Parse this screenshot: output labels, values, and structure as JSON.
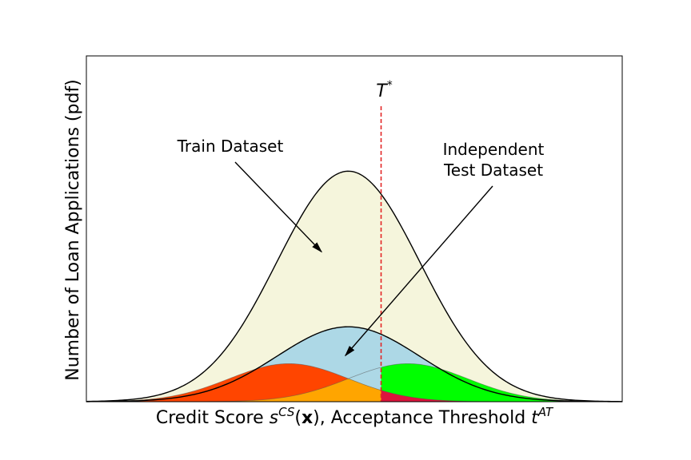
{
  "chart_data": {
    "type": "area",
    "title": "",
    "xlabel": "Credit Score s^CS(x), Acceptance Threshold t^AT",
    "xlabel_parts": {
      "prefix": "Credit Score ",
      "s": "s",
      "s_sup": "CS",
      "open": "(",
      "x": "x",
      "close": "), Acceptance Threshold ",
      "t": "t",
      "t_sup": "AT"
    },
    "ylabel": "Number of Loan Applications (pdf)",
    "xlim": [
      -4.4,
      4.6
    ],
    "ylim": [
      0,
      1.5
    ],
    "grid": false,
    "ticks_visible": false,
    "threshold": {
      "label": "T",
      "label_sup": "*",
      "x": 0.55,
      "color": "#e32626",
      "style": "dashed"
    },
    "series": [
      {
        "mean": 0.0,
        "std": 1.2,
        "peak": 1.0,
        "fill": "#f5f5dc",
        "outline": "#000000"
      },
      {
        "mean": 0.0,
        "std": 1.2,
        "peak": 0.325,
        "fill": "#add8e6",
        "outline": "#000000"
      },
      {
        "mean": -1.0,
        "std": 1.0,
        "peak": 0.165,
        "fill": "#ff4500",
        "clip": "x<=threshold",
        "outline": "#555555"
      },
      {
        "mean": 1.0,
        "std": 1.0,
        "peak": 0.165,
        "fill": "#00ff00",
        "clip": "x>=threshold",
        "outline": "#555555"
      },
      {
        "region": "min(orange-red,green) left of threshold",
        "fill": "#ffa500"
      },
      {
        "region": "min(orange-red,green) right of threshold",
        "fill": "#dc143c"
      }
    ],
    "annotations": [
      {
        "text": "Train Dataset",
        "lines": [
          "Train Dataset"
        ],
        "arrow_to": [
          -0.45,
          0.65
        ]
      },
      {
        "text": "Independent Test Dataset",
        "lines": [
          "Independent",
          "Test Dataset"
        ],
        "arrow_to": [
          -0.05,
          0.2
        ]
      }
    ]
  }
}
